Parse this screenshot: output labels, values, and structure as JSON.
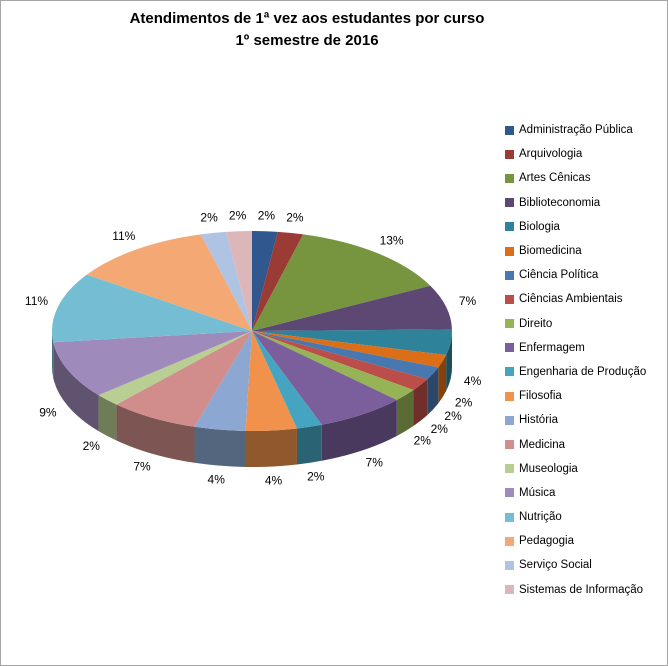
{
  "title": {
    "line1": "Atendimentos de 1ª vez aos estudantes por curso",
    "line2": "1º semestre de 2016"
  },
  "chart_data": {
    "type": "pie",
    "is_3d": true,
    "title": "Atendimentos de 1ª vez aos estudantes por curso — 1º semestre de 2016",
    "legend_position": "right",
    "data_labels": "percent-outside",
    "start_angle_deg": -90,
    "direction": "clockwise",
    "categories": [
      "Administração Pública",
      "Arquivologia",
      "Artes Cênicas",
      "Biblioteconomia",
      "Biologia",
      "Biomedicina",
      "Ciência Política",
      "Ciências Ambientais",
      "Direito",
      "Enfermagem",
      "Engenharia de Produção",
      "Filosofia",
      "História",
      "Medicina",
      "Museologia",
      "Música",
      "Nutrição",
      "Pedagogia",
      "Serviço Social",
      "Sistemas de Informação"
    ],
    "values_percent": [
      2,
      2,
      13,
      7,
      4,
      2,
      2,
      2,
      2,
      7,
      2,
      4,
      4,
      7,
      2,
      9,
      11,
      11,
      2,
      2
    ],
    "label_texts": [
      "2%",
      "2%",
      "13%",
      "7%",
      "4%",
      "2%",
      "2%",
      "2%",
      "2%",
      "7%",
      "2%",
      "4%",
      "4%",
      "7%",
      "2%",
      "9%",
      "11%",
      "11%",
      "2%",
      "2%"
    ],
    "colors": [
      "#31588E",
      "#9A3B35",
      "#77953F",
      "#5C4873",
      "#2E8299",
      "#DB6E17",
      "#4778B0",
      "#BC4E4A",
      "#96B355",
      "#7A5F9C",
      "#45A5C1",
      "#F0924B",
      "#8CA8D2",
      "#D08D8B",
      "#B9CE92",
      "#9E8BBB",
      "#74BDD3",
      "#F4A975",
      "#AFC3E2",
      "#DDB6B9"
    ]
  }
}
